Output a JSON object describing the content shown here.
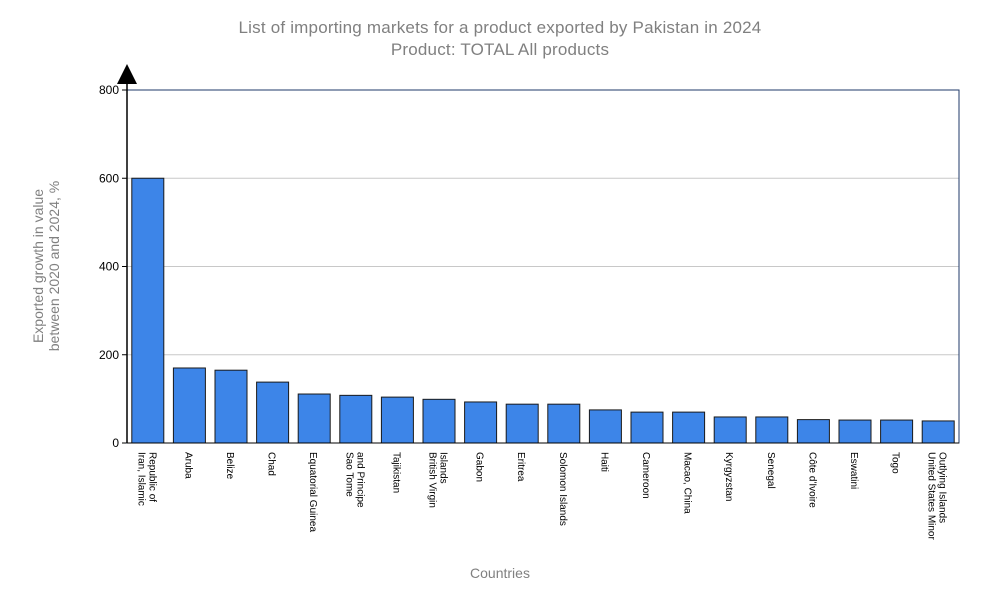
{
  "chart_data": {
    "type": "bar",
    "title": "List of importing markets for a product exported by Pakistan in 2024",
    "subtitle": "Product: TOTAL All products",
    "ylabel_line1": "Exported growth in value",
    "ylabel_line2": "between 2020 and 2024, %",
    "xlabel": "Countries",
    "ylim": [
      0,
      800
    ],
    "yticks": [
      "0",
      "200",
      "400",
      "600",
      "800"
    ],
    "grid": true,
    "bar_color": "#3d85e8",
    "categories": [
      [
        "Iran, Islamic",
        "Republic of"
      ],
      [
        "Aruba"
      ],
      [
        "Belize"
      ],
      [
        "Chad"
      ],
      [
        "Equatorial Guinea"
      ],
      [
        "Sao Tome",
        "and Principe"
      ],
      [
        "Tajikistan"
      ],
      [
        "British Virgin",
        "Islands"
      ],
      [
        "Gabon"
      ],
      [
        "Eritrea"
      ],
      [
        "Solomon Islands"
      ],
      [
        "Haiti"
      ],
      [
        "Cameroon"
      ],
      [
        "Macao, China"
      ],
      [
        "Kyrgyzstan"
      ],
      [
        "Senegal"
      ],
      [
        "Côte d'Ivoire"
      ],
      [
        "Eswatini"
      ],
      [
        "Togo"
      ],
      [
        "United States Minor",
        "Outlying Islands"
      ]
    ],
    "values": [
      600,
      170,
      165,
      138,
      111,
      108,
      104,
      99,
      93,
      88,
      88,
      75,
      70,
      70,
      59,
      59,
      53,
      52,
      52,
      50
    ]
  }
}
